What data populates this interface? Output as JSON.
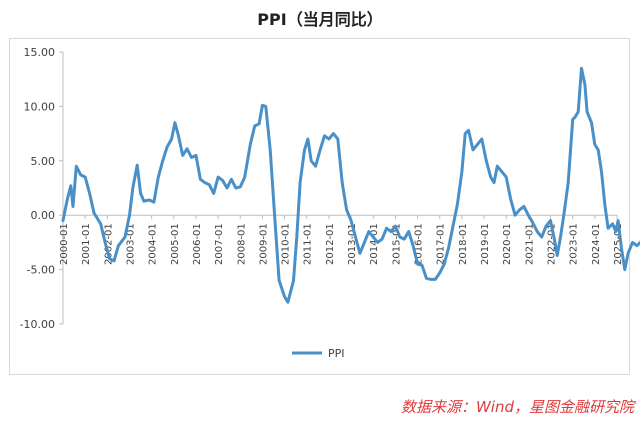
{
  "title": "PPI（当月同比）",
  "source_note": "数据来源：Wind，星图金融研究院",
  "chart_data": {
    "type": "line",
    "title": "PPI（当月同比）",
    "xlabel": "",
    "ylabel": "",
    "ylim": [
      -10,
      15
    ],
    "yticks": [
      "15.00",
      "10.00",
      "5.00",
      "0.00",
      "-5.00",
      "-10.00"
    ],
    "xtick_labels": [
      "2000-01",
      "2001-01",
      "2002-01",
      "2003-01",
      "2004-01",
      "2005-01",
      "2006-01",
      "2007-01",
      "2008-01",
      "2009-01",
      "2010-01",
      "2011-01",
      "2012-01",
      "2013-01",
      "2014-01",
      "2015-01",
      "2016-01",
      "2017-01",
      "2018-01",
      "2019-01",
      "2020-01",
      "2021-01",
      "2022-01",
      "2023-01",
      "2024-01",
      "2025-01"
    ],
    "grid": false,
    "legend": "bottom-center",
    "series": [
      {
        "name": "PPI",
        "color": "#4a90c8",
        "points": [
          [
            2000.0,
            -0.5
          ],
          [
            2000.2,
            1.5
          ],
          [
            2000.35,
            2.7
          ],
          [
            2000.45,
            0.8
          ],
          [
            2000.6,
            4.5
          ],
          [
            2000.8,
            3.7
          ],
          [
            2001.0,
            3.5
          ],
          [
            2001.2,
            2.0
          ],
          [
            2001.4,
            0.2
          ],
          [
            2001.7,
            -0.8
          ],
          [
            2001.9,
            -2.5
          ],
          [
            2002.1,
            -4.0
          ],
          [
            2002.3,
            -4.2
          ],
          [
            2002.5,
            -2.8
          ],
          [
            2002.8,
            -2.0
          ],
          [
            2003.0,
            0.0
          ],
          [
            2003.15,
            2.5
          ],
          [
            2003.35,
            4.6
          ],
          [
            2003.5,
            2.0
          ],
          [
            2003.65,
            1.3
          ],
          [
            2003.9,
            1.4
          ],
          [
            2004.1,
            1.2
          ],
          [
            2004.3,
            3.5
          ],
          [
            2004.5,
            5.0
          ],
          [
            2004.7,
            6.3
          ],
          [
            2004.9,
            7.0
          ],
          [
            2005.05,
            8.5
          ],
          [
            2005.2,
            7.4
          ],
          [
            2005.4,
            5.5
          ],
          [
            2005.6,
            6.1
          ],
          [
            2005.8,
            5.3
          ],
          [
            2006.0,
            5.5
          ],
          [
            2006.2,
            3.3
          ],
          [
            2006.4,
            3.0
          ],
          [
            2006.6,
            2.8
          ],
          [
            2006.8,
            2.0
          ],
          [
            2007.0,
            3.5
          ],
          [
            2007.2,
            3.2
          ],
          [
            2007.4,
            2.5
          ],
          [
            2007.6,
            3.3
          ],
          [
            2007.8,
            2.5
          ],
          [
            2008.0,
            2.6
          ],
          [
            2008.2,
            3.5
          ],
          [
            2008.45,
            6.5
          ],
          [
            2008.65,
            8.2
          ],
          [
            2008.85,
            8.4
          ],
          [
            2009.0,
            10.1
          ],
          [
            2009.15,
            10.0
          ],
          [
            2009.35,
            6.0
          ],
          [
            2009.55,
            0.0
          ],
          [
            2009.75,
            -6.0
          ],
          [
            2010.0,
            -7.5
          ],
          [
            2010.15,
            -8.0
          ],
          [
            2010.4,
            -6.0
          ],
          [
            2010.55,
            -2.0
          ],
          [
            2010.7,
            3.0
          ],
          [
            2010.9,
            6.0
          ],
          [
            2011.05,
            7.0
          ],
          [
            2011.2,
            5.0
          ],
          [
            2011.4,
            4.5
          ],
          [
            2011.6,
            6.0
          ],
          [
            2011.8,
            7.3
          ],
          [
            2012.0,
            7.0
          ],
          [
            2012.2,
            7.5
          ],
          [
            2012.4,
            7.0
          ],
          [
            2012.6,
            3.0
          ],
          [
            2012.8,
            0.5
          ],
          [
            2013.0,
            -0.5
          ],
          [
            2013.2,
            -2.0
          ],
          [
            2013.4,
            -3.5
          ],
          [
            2013.6,
            -2.5
          ],
          [
            2013.8,
            -1.5
          ],
          [
            2014.0,
            -2.0
          ],
          [
            2014.2,
            -2.5
          ],
          [
            2014.4,
            -2.2
          ],
          [
            2014.6,
            -1.2
          ],
          [
            2014.8,
            -1.5
          ],
          [
            2015.0,
            -1.0
          ],
          [
            2015.2,
            -2.0
          ],
          [
            2015.4,
            -2.2
          ],
          [
            2015.6,
            -1.5
          ],
          [
            2015.8,
            -2.8
          ],
          [
            2016.0,
            -4.5
          ],
          [
            2016.2,
            -4.6
          ],
          [
            2016.4,
            -5.8
          ],
          [
            2016.6,
            -5.9
          ],
          [
            2016.8,
            -5.9
          ],
          [
            2017.0,
            -5.3
          ],
          [
            2017.2,
            -4.5
          ],
          [
            2017.4,
            -3.0
          ],
          [
            2017.6,
            -1.0
          ],
          [
            2017.8,
            1.0
          ],
          [
            2018.0,
            4.0
          ],
          [
            2018.15,
            7.5
          ],
          [
            2018.3,
            7.8
          ],
          [
            2018.5,
            6.0
          ],
          [
            2018.7,
            6.5
          ],
          [
            2018.9,
            7.0
          ],
          [
            2019.1,
            5.0
          ],
          [
            2019.3,
            3.5
          ],
          [
            2019.45,
            3.0
          ],
          [
            2019.6,
            4.5
          ],
          [
            2019.8,
            4.0
          ],
          [
            2020.0,
            3.5
          ],
          [
            2020.2,
            1.5
          ],
          [
            2020.4,
            0.0
          ],
          [
            2020.6,
            0.5
          ],
          [
            2020.8,
            0.8
          ],
          [
            2021.0,
            0.0
          ],
          [
            2021.2,
            -0.7
          ],
          [
            2021.4,
            -1.5
          ],
          [
            2021.6,
            -2.0
          ],
          [
            2021.8,
            -1.0
          ],
          [
            2022.0,
            -0.5
          ],
          [
            2022.2,
            -2.5
          ],
          [
            2022.3,
            -3.7
          ],
          [
            2022.45,
            -2.0
          ],
          [
            2022.6,
            0.0
          ],
          [
            2022.8,
            3.0
          ],
          [
            2023.0,
            8.8
          ],
          [
            2023.1,
            9.0
          ],
          [
            2023.25,
            9.5
          ],
          [
            2023.4,
            13.5
          ],
          [
            2023.55,
            12.0
          ],
          [
            2023.65,
            9.5
          ],
          [
            2023.85,
            8.5
          ],
          [
            2024.0,
            6.5
          ],
          [
            2024.15,
            6.0
          ],
          [
            2024.3,
            4.0
          ],
          [
            2024.45,
            1.0
          ],
          [
            2024.6,
            -1.2
          ],
          [
            2024.8,
            -0.8
          ],
          [
            2024.95,
            -1.5
          ],
          [
            2025.05,
            -0.5
          ],
          [
            2025.2,
            -3.0
          ],
          [
            2025.35,
            -5.0
          ],
          [
            2025.5,
            -3.5
          ],
          [
            2025.7,
            -2.5
          ],
          [
            2025.9,
            -2.8
          ],
          [
            2026.1,
            -2.4
          ],
          [
            2026.3,
            -1.8
          ],
          [
            2026.45,
            -0.8
          ],
          [
            2026.6,
            -2.5
          ],
          [
            2026.8,
            -2.6
          ],
          [
            2027.0,
            -2.2
          ],
          [
            2027.2,
            -2.3
          ],
          [
            2027.4,
            -3.0
          ]
        ]
      }
    ]
  }
}
